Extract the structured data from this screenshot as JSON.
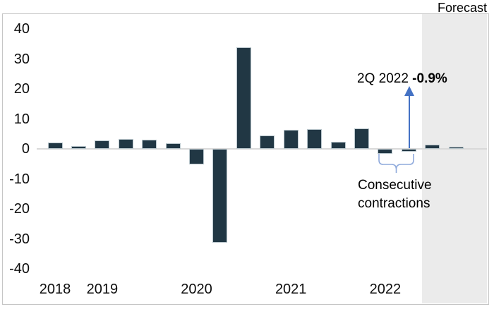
{
  "forecast_label": "Forecast",
  "annotation": {
    "prefix": "2Q 2022 ",
    "value": "-0.9%"
  },
  "contractions_label": {
    "line1": "Consecutive",
    "line2": "contractions"
  },
  "colors": {
    "bar": "#213744",
    "forecast_band": "#ebebeb",
    "arrow": "#4472c4",
    "brace": "#8faadc",
    "zero_gridline": "#d9d9d9",
    "frame_border": "#c6c6c6",
    "text": "#000000"
  },
  "chart_data": {
    "type": "bar",
    "title": "",
    "xlabel": "",
    "ylabel": "",
    "ylim": [
      -40,
      40
    ],
    "yticks": [
      40,
      30,
      20,
      10,
      0,
      -10,
      -20,
      -30,
      -40
    ],
    "grid": false,
    "legend": false,
    "x": [
      "2018 Q3",
      "2018 Q4",
      "2019 Q1",
      "2019 Q2",
      "2019 Q3",
      "2019 Q4",
      "2020 Q1",
      "2020 Q2",
      "2020 Q3",
      "2020 Q4",
      "2021 Q1",
      "2021 Q2",
      "2021 Q3",
      "2021 Q4",
      "2022 Q1",
      "2022 Q2",
      "2022 Q3 (forecast)",
      "2022 Q4 (forecast)"
    ],
    "values": [
      2.1,
      1.0,
      2.9,
      3.4,
      3.0,
      1.9,
      -5.1,
      -31.2,
      33.8,
      4.5,
      6.3,
      6.7,
      2.3,
      6.9,
      -1.6,
      -0.9,
      1.5,
      0.7
    ],
    "x_year_labels": [
      {
        "label": "2018",
        "index": 0
      },
      {
        "label": "2019",
        "index": 2
      },
      {
        "label": "2020",
        "index": 6
      },
      {
        "label": "2021",
        "index": 10
      },
      {
        "label": "2022",
        "index": 14
      }
    ],
    "forecast_start_index": 16
  }
}
